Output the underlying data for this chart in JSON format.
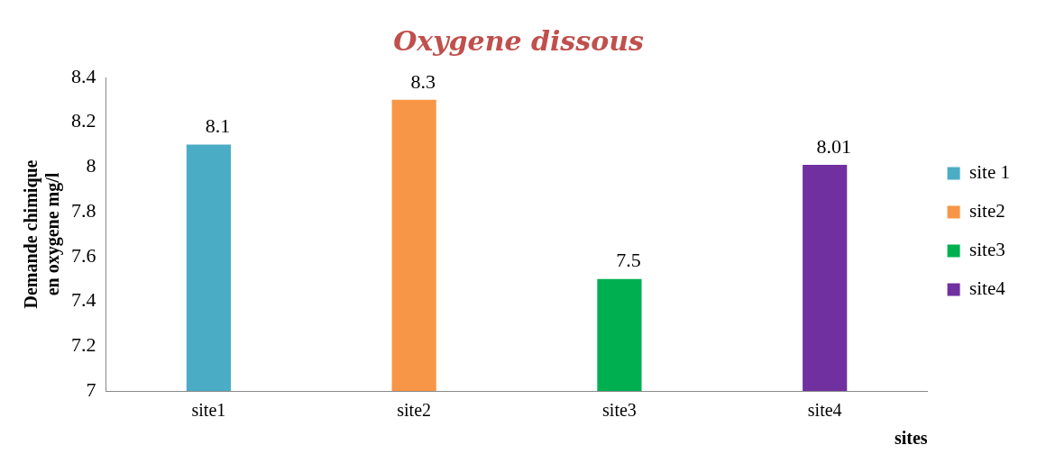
{
  "chart_data": {
    "type": "bar",
    "title": "Oxygene dissous",
    "xlabel": "sites",
    "ylabel": "Demande chimique en oxygene mg/l",
    "categories": [
      "site1",
      "site2",
      "site3",
      "site4"
    ],
    "series": [
      {
        "name": "site 1",
        "color": "#4bacc6",
        "values": [
          8.1,
          null,
          null,
          null
        ]
      },
      {
        "name": "site2",
        "color": "#f79646",
        "values": [
          null,
          8.3,
          null,
          null
        ]
      },
      {
        "name": "site3",
        "color": "#00b050",
        "values": [
          null,
          null,
          7.5,
          null
        ]
      },
      {
        "name": "site4",
        "color": "#7030a0",
        "values": [
          null,
          null,
          null,
          8.01
        ]
      }
    ],
    "ylim": [
      7,
      8.4
    ],
    "yticks": [
      7,
      7.2,
      7.4,
      7.6,
      7.8,
      8,
      8.2,
      8.4
    ],
    "legend": "right",
    "data_labels": true
  }
}
